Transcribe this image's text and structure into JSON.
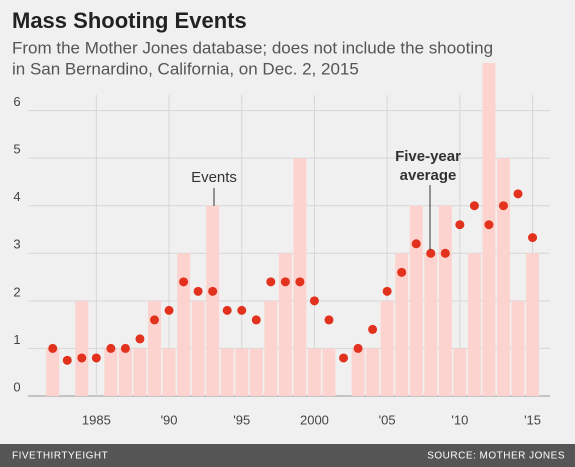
{
  "chart_data": {
    "type": "bar",
    "title": "Mass Shooting Events",
    "subtitle": [
      "From the Mother Jones database; does not include the shooting",
      "in San Bernardino, California, on Dec. 2, 2015"
    ],
    "x": [
      1982,
      1983,
      1984,
      1985,
      1986,
      1987,
      1988,
      1989,
      1990,
      1991,
      1992,
      1993,
      1994,
      1995,
      1996,
      1997,
      1998,
      1999,
      2000,
      2001,
      2002,
      2003,
      2004,
      2005,
      2006,
      2007,
      2008,
      2009,
      2010,
      2011,
      2012,
      2013,
      2014,
      2015
    ],
    "series": [
      {
        "type": "bar",
        "color": "#fcd3ce",
        "values": [
          1,
          0,
          2,
          0,
          1,
          1,
          1,
          2,
          1,
          3,
          2,
          4,
          1,
          1,
          1,
          2,
          3,
          5,
          1,
          1,
          0,
          1,
          1,
          2,
          3,
          4,
          3,
          4,
          1,
          3,
          7,
          5,
          2,
          3
        ]
      },
      {
        "type": "scatter",
        "color": "#e2311d",
        "values": [
          1,
          0.75,
          0.8,
          0.8,
          1,
          1,
          1.2,
          1.6,
          1.8,
          2.4,
          2.2,
          2.2,
          1.8,
          1.8,
          1.6,
          2.4,
          2.4,
          2.4,
          2,
          1.6,
          0.8,
          1,
          1.4,
          2.2,
          2.6,
          3.2,
          3,
          3,
          3.6,
          4,
          3.6,
          4,
          4.25,
          3.33
        ]
      }
    ],
    "annotations": [
      {
        "lines": [
          "Events"
        ]
      },
      {
        "lines": [
          "Five-year",
          "average"
        ]
      }
    ],
    "xlim": [
      1980.3,
      2016.2
    ],
    "xticks": [
      1985,
      {
        "value": 1990,
        "label": "'90"
      },
      {
        "value": 1995,
        "label": "'95"
      },
      2000,
      {
        "value": 2005,
        "label": "'05"
      },
      {
        "value": 2010,
        "label": "'10"
      },
      {
        "value": 2015,
        "label": "'15"
      }
    ],
    "ylim": [
      0,
      7
    ],
    "yticks": [
      0,
      1,
      2,
      3,
      4,
      5,
      6
    ],
    "grid": true,
    "brand": "FIVETHIRTYEIGHT",
    "source": "SOURCE: MOTHER JONES"
  }
}
